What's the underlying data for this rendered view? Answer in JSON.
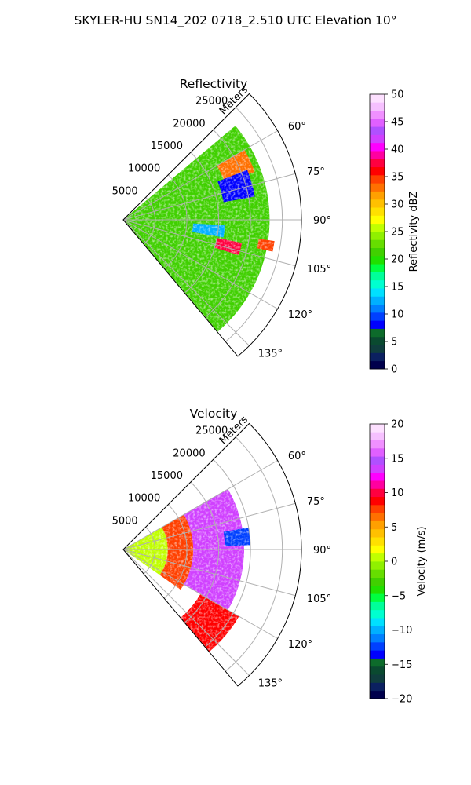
{
  "figure_title": "SKYLER-HU  SN14_202  0718_2.510 UTC Elevation 10°",
  "chart_data": [
    {
      "type": "heatmap",
      "projection": "polar-sector",
      "title": "Reflectivity",
      "radial_axis_label": "Meters",
      "radial_ticks": [
        5000,
        10000,
        15000,
        20000,
        25000
      ],
      "radial_tick_labels": [
        "5000",
        "10000",
        "15000",
        "20000",
        "25000"
      ],
      "radial_limit": [
        0,
        28000
      ],
      "azimuth_range_deg": [
        45,
        140
      ],
      "azimuth_ticks": [
        60,
        75,
        90,
        105,
        120,
        135
      ],
      "azimuth_tick_labels": [
        "60°",
        "75°",
        "90°",
        "105°",
        "120°",
        "135°"
      ],
      "grid": true,
      "colorbar": {
        "label": "Reflectivity dBZ",
        "range": [
          0,
          50
        ],
        "ticks": [
          0,
          5,
          10,
          15,
          20,
          25,
          30,
          35,
          40,
          45,
          50
        ],
        "tick_labels": [
          "0",
          "5",
          "10",
          "15",
          "20",
          "25",
          "30",
          "35",
          "40",
          "45",
          "50"
        ],
        "colors": [
          "#00004c",
          "#0b2060",
          "#0f3d3d",
          "#0a4a30",
          "#0d6b2b",
          "#0000ff",
          "#0040ff",
          "#0080ff",
          "#00b0ff",
          "#00e0ff",
          "#00ffd0",
          "#00ff9a",
          "#00ff40",
          "#20e000",
          "#40d000",
          "#66dd00",
          "#90f000",
          "#c0ff00",
          "#ffff00",
          "#ffe000",
          "#ffc000",
          "#ffa000",
          "#ff7000",
          "#ff4000",
          "#ff0000",
          "#ff0040",
          "#ff00a0",
          "#ff00ff",
          "#d040ff",
          "#b050ff",
          "#e060ff",
          "#f090ff",
          "#f6c0ff",
          "#fde0ff"
        ]
      },
      "echo_regions": [
        {
          "az_deg": [
            50,
            140
          ],
          "range_m": [
            0,
            23000
          ],
          "dbz": 22
        },
        {
          "az_deg": [
            60,
            70
          ],
          "range_m": [
            17000,
            22000
          ],
          "dbz": 33
        },
        {
          "az_deg": [
            101,
            107
          ],
          "range_m": [
            15000,
            19000
          ],
          "dbz": 37
        },
        {
          "az_deg": [
            98,
            102
          ],
          "range_m": [
            21500,
            24000
          ],
          "dbz": 34
        },
        {
          "az_deg": [
            93,
            100
          ],
          "range_m": [
            11000,
            16000
          ],
          "dbz": 13
        },
        {
          "az_deg": [
            68,
            80
          ],
          "range_m": [
            16000,
            21000
          ],
          "dbz": 8
        }
      ]
    },
    {
      "type": "heatmap",
      "projection": "polar-sector",
      "title": "Velocity",
      "radial_axis_label": "Meters",
      "radial_ticks": [
        5000,
        10000,
        15000,
        20000,
        25000
      ],
      "radial_tick_labels": [
        "5000",
        "10000",
        "15000",
        "20000",
        "25000"
      ],
      "radial_limit": [
        0,
        28000
      ],
      "azimuth_range_deg": [
        45,
        140
      ],
      "azimuth_ticks": [
        60,
        75,
        90,
        105,
        120,
        135
      ],
      "azimuth_tick_labels": [
        "60°",
        "75°",
        "90°",
        "105°",
        "120°",
        "135°"
      ],
      "grid": true,
      "colorbar": {
        "label": "Velocity (m/s)",
        "range": [
          -20,
          20
        ],
        "ticks": [
          -20,
          -15,
          -10,
          -5,
          0,
          5,
          10,
          15,
          20
        ],
        "tick_labels": [
          "−20",
          "−15",
          "−10",
          "−5",
          "0",
          "5",
          "10",
          "15",
          "20"
        ],
        "colors": [
          "#00004c",
          "#0b2060",
          "#0f3d3d",
          "#0a4a30",
          "#0d6b2b",
          "#0000ff",
          "#0040ff",
          "#0080ff",
          "#00b0ff",
          "#00e0ff",
          "#00ffd0",
          "#00ff9a",
          "#00ff40",
          "#20e000",
          "#40d000",
          "#66dd00",
          "#90f000",
          "#c0ff00",
          "#ffff00",
          "#ffe000",
          "#ffc000",
          "#ffa000",
          "#ff7000",
          "#ff4000",
          "#ff0000",
          "#ff0040",
          "#ff00a0",
          "#ff00ff",
          "#d040ff",
          "#b050ff",
          "#e060ff",
          "#f090ff",
          "#f6c0ff",
          "#fde0ff"
        ]
      },
      "echo_regions": [
        {
          "az_deg": [
            60,
            125
          ],
          "range_m": [
            0,
            7000
          ],
          "velocity": 0
        },
        {
          "az_deg": [
            60,
            125
          ],
          "range_m": [
            7000,
            11000
          ],
          "velocity": 8
        },
        {
          "az_deg": [
            60,
            120
          ],
          "range_m": [
            11000,
            19000
          ],
          "velocity": 14
        },
        {
          "az_deg": [
            80,
            88
          ],
          "range_m": [
            16000,
            20000
          ],
          "velocity": -12
        },
        {
          "az_deg": [
            120,
            140
          ],
          "range_m": [
            14000,
            21000
          ],
          "velocity": 9
        }
      ]
    }
  ]
}
